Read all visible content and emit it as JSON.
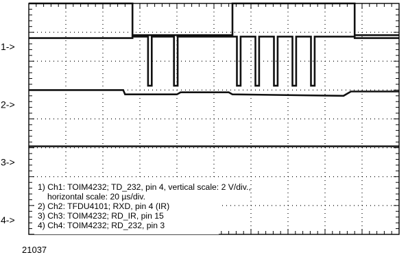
{
  "chart_data": {
    "type": "line",
    "title": "",
    "xlabel": "",
    "ylabel": "",
    "grid": true,
    "grid_style": "dotted",
    "divisions": {
      "x": 10,
      "y": 8
    },
    "x_range_div": [
      0,
      10
    ],
    "y_range_div": [
      0,
      8
    ],
    "channel_markers": [
      {
        "label": "1->",
        "level_div": 6.5
      },
      {
        "label": "2->",
        "level_div": 4.5
      },
      {
        "label": "3->",
        "level_div": 2.5
      },
      {
        "label": "4->",
        "level_div": 0.5
      }
    ],
    "series": [
      {
        "name": "Ch1",
        "points": [
          [
            0.0,
            8.0
          ],
          [
            2.8,
            8.0
          ],
          [
            2.8,
            6.9
          ],
          [
            5.5,
            6.9
          ],
          [
            5.5,
            8.0
          ],
          [
            8.8,
            8.0
          ],
          [
            8.8,
            6.9
          ],
          [
            10.0,
            6.9
          ]
        ]
      },
      {
        "name": "Ch2",
        "points": [
          [
            0.0,
            6.8
          ],
          [
            2.8,
            6.8
          ],
          [
            2.8,
            6.85
          ],
          [
            3.22,
            6.85
          ],
          [
            3.22,
            5.15
          ],
          [
            3.32,
            5.15
          ],
          [
            3.32,
            6.85
          ],
          [
            3.92,
            6.85
          ],
          [
            3.92,
            5.15
          ],
          [
            4.02,
            5.15
          ],
          [
            4.02,
            6.85
          ],
          [
            5.62,
            6.85
          ],
          [
            5.62,
            5.15
          ],
          [
            5.72,
            5.15
          ],
          [
            5.72,
            6.85
          ],
          [
            6.12,
            6.85
          ],
          [
            6.12,
            5.15
          ],
          [
            6.22,
            5.15
          ],
          [
            6.22,
            6.85
          ],
          [
            6.62,
            6.85
          ],
          [
            6.62,
            5.15
          ],
          [
            6.72,
            5.15
          ],
          [
            6.72,
            6.85
          ],
          [
            7.12,
            6.85
          ],
          [
            7.12,
            5.15
          ],
          [
            7.22,
            5.15
          ],
          [
            7.22,
            6.85
          ],
          [
            7.62,
            6.85
          ],
          [
            7.62,
            5.15
          ],
          [
            7.72,
            5.15
          ],
          [
            7.72,
            6.85
          ],
          [
            8.8,
            6.85
          ],
          [
            8.8,
            6.8
          ],
          [
            10.0,
            6.8
          ]
        ]
      },
      {
        "name": "Ch3",
        "points": [
          [
            0.0,
            5.0
          ],
          [
            2.55,
            5.0
          ],
          [
            2.6,
            4.85
          ],
          [
            4.0,
            4.85
          ],
          [
            4.1,
            4.92
          ],
          [
            5.4,
            4.92
          ],
          [
            5.5,
            4.85
          ],
          [
            8.5,
            4.8
          ],
          [
            8.7,
            4.95
          ],
          [
            10.0,
            4.95
          ]
        ]
      },
      {
        "name": "Ch4",
        "points": [
          [
            0.0,
            3.05
          ],
          [
            10.0,
            3.05
          ]
        ]
      }
    ],
    "legend": {
      "placement": "bottom-left",
      "lines": [
        "1) Ch1: TOIM4232; TD_232, pin 4, vertical scale: 2 V/div.,",
        "horizontal scale: 20 µs/div.",
        "2) Ch2: TFDU4101; RXD, pin 4 (IR)",
        "3) Ch3: TOIM4232; RD_IR, pin 15",
        "4) Ch4: TOIM4232; RD_232, pin 3"
      ]
    },
    "figure_id": "21037"
  }
}
